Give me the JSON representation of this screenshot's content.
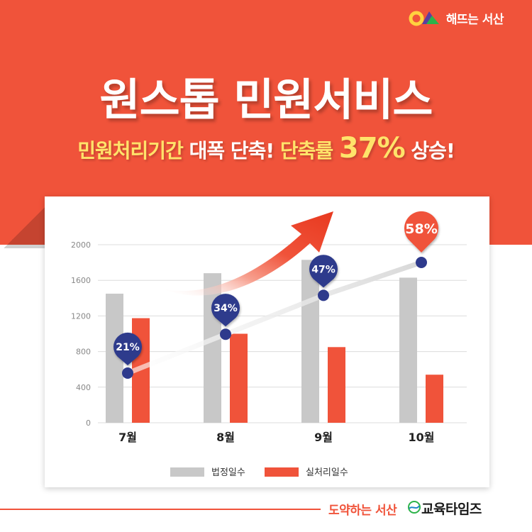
{
  "header": {
    "logo_text": "해뜨는 서산",
    "title": "원스톱 민원서비스",
    "subtitle_part1": "민원처리기간",
    "subtitle_part2": " 대폭 단축! ",
    "subtitle_part3": "단축률 ",
    "subtitle_part4": "37%",
    "subtitle_part5": " 상승!"
  },
  "colors": {
    "accent": "#f0533a",
    "gray_bar": "#c8c8c8",
    "orange_bar": "#f0533a",
    "marker": "#2e3a8c",
    "highlight": "#ffe36a"
  },
  "chart_data": {
    "type": "bar",
    "categories": [
      "7월",
      "8월",
      "9월",
      "10월"
    ],
    "series": [
      {
        "name": "법정일수",
        "values": [
          1450,
          1680,
          1830,
          1630
        ]
      },
      {
        "name": "실처리일수",
        "values": [
          1175,
          1000,
          850,
          540
        ]
      }
    ],
    "overlay_line": {
      "values": [
        21,
        34,
        47,
        58
      ],
      "labels": [
        "21%",
        "34%",
        "47%",
        "58%"
      ],
      "unit": "%"
    },
    "ylim": [
      0,
      2000
    ],
    "yticks": [
      "0",
      "400",
      "800",
      "1200",
      "1600",
      "2000"
    ],
    "grid": true,
    "legend_position": "bottom"
  },
  "footer": {
    "left_text": "도약하는 서산",
    "right_text": "교육타임즈"
  }
}
